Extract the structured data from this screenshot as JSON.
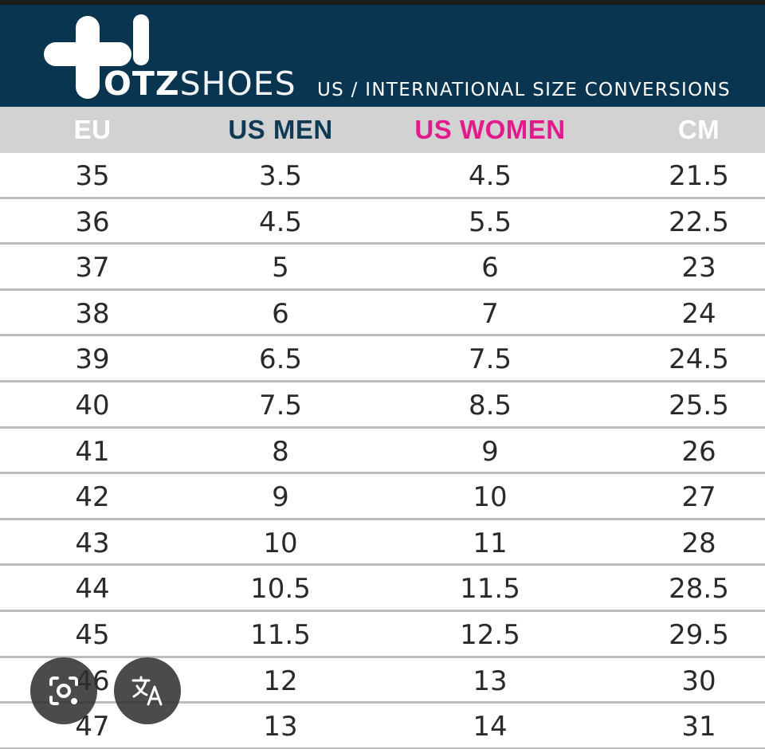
{
  "banner": {
    "brand_bold": "OTZ",
    "brand_light": "SHOES",
    "subtitle": "US / INTERNATIONAL SIZE CONVERSIONS",
    "background_color": "#0a3550"
  },
  "table": {
    "headers": [
      {
        "label": "EU",
        "color": "#ffffff"
      },
      {
        "label": "US MEN",
        "color": "#0f3a55"
      },
      {
        "label": "US WOMEN",
        "color": "#e21a8c"
      },
      {
        "label": "CM",
        "color": "#ffffff"
      }
    ],
    "header_background": "#d2d2d2",
    "rows": [
      [
        "35",
        "3.5",
        "4.5",
        "21.5"
      ],
      [
        "36",
        "4.5",
        "5.5",
        "22.5"
      ],
      [
        "37",
        "5",
        "6",
        "23"
      ],
      [
        "38",
        "6",
        "7",
        "24"
      ],
      [
        "39",
        "6.5",
        "7.5",
        "24.5"
      ],
      [
        "40",
        "7.5",
        "8.5",
        "25.5"
      ],
      [
        "41",
        "8",
        "9",
        "26"
      ],
      [
        "42",
        "9",
        "10",
        "27"
      ],
      [
        "43",
        "10",
        "11",
        "28"
      ],
      [
        "44",
        "10.5",
        "11.5",
        "28.5"
      ],
      [
        "45",
        "11.5",
        "12.5",
        "29.5"
      ],
      [
        "46",
        "12",
        "13",
        "30"
      ],
      [
        "47",
        "13",
        "14",
        "31"
      ]
    ]
  },
  "overlay": {
    "lens_icon": "camera-lens-icon",
    "translate_icon": "translate-icon"
  }
}
